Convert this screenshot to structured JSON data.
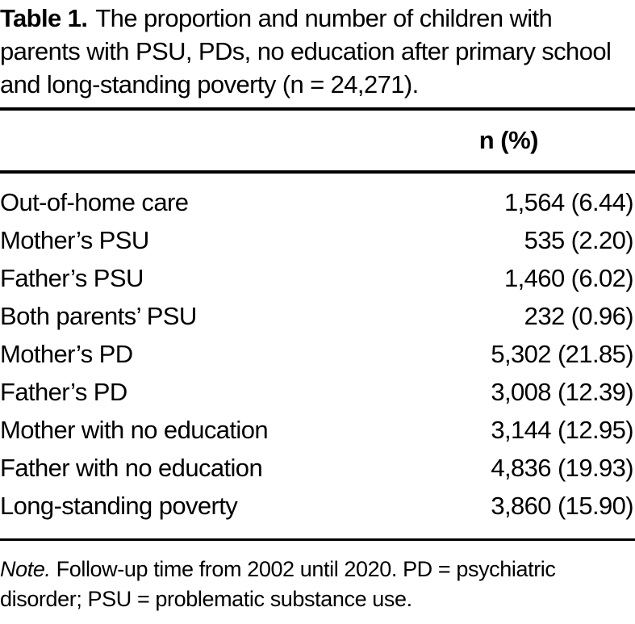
{
  "table": {
    "title_label": "Table 1.",
    "title_text": "The proportion and number of children with parents with PSU, PDs, no education after primary school and long-standing poverty (n = 24,271).",
    "header": {
      "value_column": "n (%)"
    },
    "rows": [
      {
        "label": "Out-of-home care",
        "value": "1,564 (6.44)"
      },
      {
        "label": "Mother’s PSU",
        "value": "535 (2.20)"
      },
      {
        "label": "Father’s PSU",
        "value": "1,460 (6.02)"
      },
      {
        "label": "Both parents’ PSU",
        "value": "232 (0.96)"
      },
      {
        "label": "Mother’s PD",
        "value": "5,302 (21.85)"
      },
      {
        "label": "Father’s PD",
        "value": "3,008 (12.39)"
      },
      {
        "label": "Mother with no education",
        "value": "3,144 (12.95)"
      },
      {
        "label": "Father with no education",
        "value": "4,836 (19.93)"
      },
      {
        "label": "Long-standing poverty",
        "value": "3,860 (15.90)"
      }
    ],
    "note_label": "Note.",
    "note_text": "Follow-up time from 2002 until 2020. PD = psychiatric disorder; PSU = problematic substance use.",
    "colors": {
      "text": "#000000",
      "background": "#ffffff",
      "rule": "#000000"
    }
  }
}
